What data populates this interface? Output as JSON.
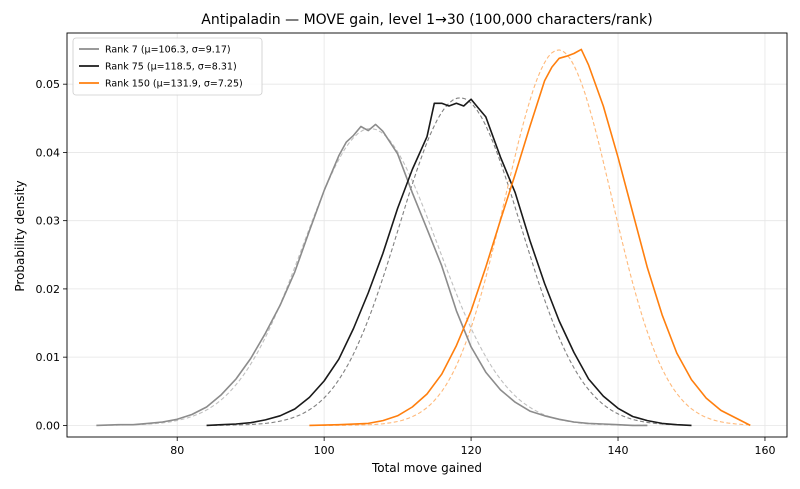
{
  "chart_data": {
    "type": "line",
    "title": "Antipaladin — MOVE gain, level 1→30 (100,000 characters/rank)",
    "xlabel": "Total move gained",
    "ylabel": "Probability density",
    "xlim": [
      65,
      163
    ],
    "ylim": [
      -0.0017,
      0.0575
    ],
    "xticks": [
      80,
      100,
      120,
      140,
      160
    ],
    "xtick_labels": [
      "80",
      "100",
      "120",
      "140",
      "160"
    ],
    "yticks": [
      0.0,
      0.01,
      0.02,
      0.03,
      0.04,
      0.05
    ],
    "ytick_labels": [
      "0.00",
      "0.01",
      "0.02",
      "0.03",
      "0.04",
      "0.05"
    ],
    "grid": true,
    "legend_position": "top-left",
    "series": [
      {
        "name": "Rank 7 (μ=106.3, σ=9.17)",
        "color": "#8c8c8c",
        "fit": {
          "mu": 106.3,
          "sigma": 9.17
        },
        "x": [
          69,
          72,
          74,
          76,
          78,
          80,
          82,
          84,
          86,
          88,
          90,
          92,
          94,
          96,
          98,
          100,
          102,
          103,
          104,
          105,
          106,
          107,
          108,
          110,
          112,
          114,
          116,
          118,
          120,
          122,
          124,
          126,
          128,
          130,
          132,
          134,
          136,
          138,
          140,
          142,
          144
        ],
        "y": [
          0.0,
          0.0001,
          0.0001,
          0.0003,
          0.0005,
          0.0009,
          0.0016,
          0.0027,
          0.0045,
          0.0068,
          0.0098,
          0.0135,
          0.0176,
          0.0225,
          0.0285,
          0.0344,
          0.0395,
          0.0415,
          0.0425,
          0.0438,
          0.0432,
          0.0441,
          0.0431,
          0.0398,
          0.0341,
          0.0288,
          0.0234,
          0.0168,
          0.0115,
          0.0078,
          0.0052,
          0.0034,
          0.0021,
          0.0014,
          0.0009,
          0.0005,
          0.0003,
          0.0002,
          0.0001,
          0.0,
          0.0
        ]
      },
      {
        "name": "Rank 75 (μ=118.5, σ=8.31)",
        "color": "#1a1a1a",
        "fit": {
          "mu": 118.5,
          "sigma": 8.31
        },
        "x": [
          84,
          86,
          88,
          90,
          92,
          94,
          96,
          98,
          100,
          102,
          104,
          106,
          108,
          110,
          112,
          114,
          115,
          116,
          117,
          118,
          119,
          120,
          121,
          122,
          124,
          126,
          128,
          130,
          132,
          134,
          136,
          138,
          140,
          142,
          144,
          146,
          148,
          150
        ],
        "y": [
          0.0,
          0.0001,
          0.0002,
          0.0004,
          0.0008,
          0.0014,
          0.0024,
          0.0041,
          0.0065,
          0.0097,
          0.0142,
          0.0194,
          0.0252,
          0.0318,
          0.0375,
          0.0423,
          0.0472,
          0.0472,
          0.0468,
          0.0472,
          0.0468,
          0.0478,
          0.0465,
          0.0452,
          0.0393,
          0.0341,
          0.0271,
          0.0208,
          0.0153,
          0.0107,
          0.0068,
          0.0043,
          0.0025,
          0.0013,
          0.0007,
          0.0003,
          0.0001,
          0.0
        ]
      },
      {
        "name": "Rank 150 (μ=131.9, σ=7.25)",
        "color": "#ff7f0e",
        "fit": {
          "mu": 131.9,
          "sigma": 7.25
        },
        "x": [
          98,
          102,
          106,
          108,
          110,
          112,
          114,
          116,
          118,
          120,
          122,
          124,
          126,
          128,
          130,
          131,
          132,
          133,
          134,
          135,
          136,
          138,
          140,
          142,
          144,
          146,
          148,
          150,
          152,
          154,
          156,
          158
        ],
        "y": [
          0.0,
          0.0001,
          0.0003,
          0.0007,
          0.0014,
          0.0027,
          0.0046,
          0.0075,
          0.0117,
          0.0168,
          0.0232,
          0.0301,
          0.0368,
          0.0438,
          0.0505,
          0.0525,
          0.0538,
          0.0541,
          0.0545,
          0.0551,
          0.0528,
          0.0468,
          0.0393,
          0.0312,
          0.0231,
          0.0162,
          0.0106,
          0.0067,
          0.004,
          0.0022,
          0.0011,
          0.0
        ]
      }
    ]
  }
}
